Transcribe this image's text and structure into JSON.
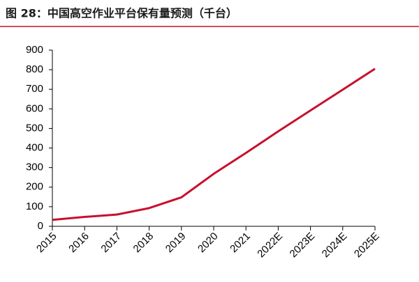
{
  "chart_data": {
    "type": "line",
    "title": "图 28：中国高空作业平台保有量预测（千台）",
    "categories": [
      "2015",
      "2016",
      "2017",
      "2018",
      "2019",
      "2020",
      "2021",
      "2022E",
      "2023E",
      "2024E",
      "2025E"
    ],
    "series": [
      {
        "name": "保有量",
        "color": "#c8102e",
        "values": [
          33,
          48,
          60,
          93,
          148,
          268,
          375,
          485,
          592,
          698,
          805
        ]
      }
    ],
    "ylim": [
      0,
      900
    ],
    "yticks": [
      0,
      100,
      200,
      300,
      400,
      500,
      600,
      700,
      800,
      900
    ],
    "grid": false
  }
}
